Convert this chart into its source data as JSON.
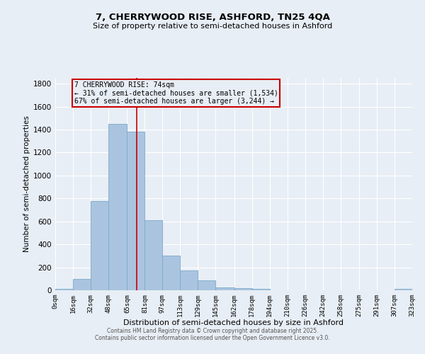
{
  "title1": "7, CHERRYWOOD RISE, ASHFORD, TN25 4QA",
  "title2": "Size of property relative to semi-detached houses in Ashford",
  "xlabel": "Distribution of semi-detached houses by size in Ashford",
  "ylabel": "Number of semi-detached properties",
  "bin_edges": [
    0,
    16,
    32,
    48,
    65,
    81,
    97,
    113,
    129,
    145,
    162,
    178,
    194,
    210,
    226,
    242,
    258,
    275,
    291,
    307,
    323
  ],
  "bar_heights": [
    10,
    100,
    780,
    1450,
    1380,
    610,
    300,
    175,
    85,
    25,
    20,
    10,
    0,
    0,
    0,
    0,
    0,
    0,
    0,
    10
  ],
  "bar_color": "#aac4e0",
  "bar_edgecolor": "#7aaac8",
  "property_size": 74,
  "vline_color": "#cc0000",
  "annotation_title": "7 CHERRYWOOD RISE: 74sqm",
  "annotation_line1": "← 31% of semi-detached houses are smaller (1,534)",
  "annotation_line2": "67% of semi-detached houses are larger (3,244) →",
  "annotation_box_color": "#cc0000",
  "ylim": [
    0,
    1850
  ],
  "yticks": [
    0,
    200,
    400,
    600,
    800,
    1000,
    1200,
    1400,
    1600,
    1800
  ],
  "xtick_labels": [
    "0sqm",
    "16sqm",
    "32sqm",
    "48sqm",
    "65sqm",
    "81sqm",
    "97sqm",
    "113sqm",
    "129sqm",
    "145sqm",
    "162sqm",
    "178sqm",
    "194sqm",
    "210sqm",
    "226sqm",
    "242sqm",
    "258sqm",
    "275sqm",
    "291sqm",
    "307sqm",
    "323sqm"
  ],
  "background_color": "#e8eef5",
  "grid_color": "#ffffff",
  "footer_line1": "Contains HM Land Registry data © Crown copyright and database right 2025.",
  "footer_line2": "Contains public sector information licensed under the Open Government Licence v3.0."
}
